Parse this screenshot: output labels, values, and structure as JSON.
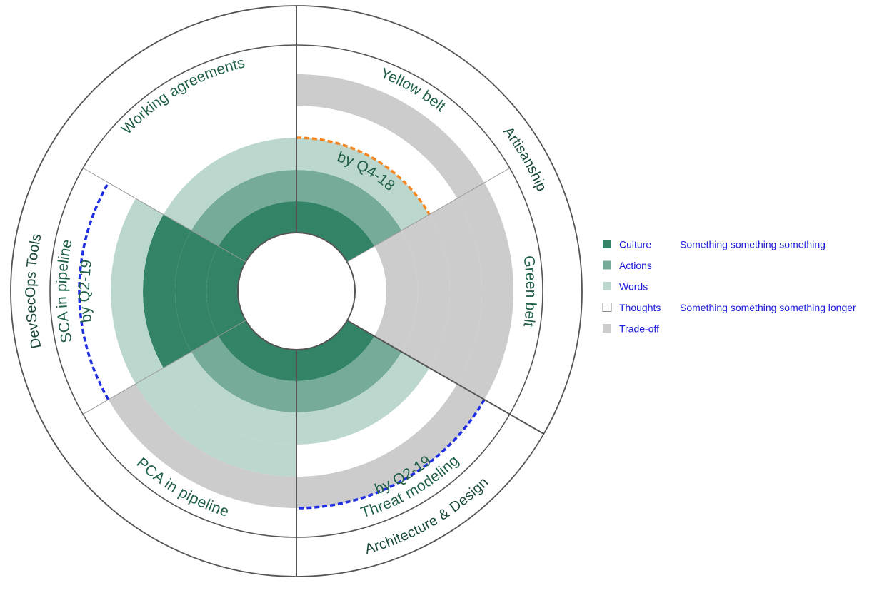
{
  "chart_data": {
    "type": "radial-bar",
    "radial_scale": [
      0,
      4
    ],
    "levels": [
      "Culture",
      "Actions",
      "Words",
      "Thoughts",
      "Trade-off"
    ],
    "legend": [
      {
        "label": "Culture",
        "note": "Something something something",
        "color": "#338466"
      },
      {
        "label": "Actions",
        "note": "",
        "color": "#76ab99"
      },
      {
        "label": "Words",
        "note": "",
        "color": "#bcd7cd"
      },
      {
        "label": "Thoughts",
        "note": "Something something something longer",
        "color": "#ffffff"
      },
      {
        "label": "Trade-off",
        "note": "",
        "color": "#cccccc"
      }
    ],
    "groups": [
      {
        "name": "Artisanship",
        "start_deg": 0,
        "end_deg": 120
      },
      {
        "name": "Architecture & Design",
        "start_deg": 120,
        "end_deg": 180
      },
      {
        "name": "DevSecOps Tools",
        "start_deg": 180,
        "end_deg": 360
      }
    ],
    "categories": [
      {
        "name": "Yellow belt",
        "start_deg": 0,
        "end_deg": 60,
        "rings": [
          "Culture",
          "Actions",
          "Words",
          "Thoughts",
          "Trade-off"
        ],
        "target": {
          "label": "by Q4-18",
          "ring": "Words",
          "color": "#f5861f"
        }
      },
      {
        "name": "Green belt",
        "start_deg": 60,
        "end_deg": 120,
        "rings": [
          "Thoughts",
          "Trade-off",
          "Trade-off",
          "Trade-off",
          "Trade-off"
        ],
        "target": null
      },
      {
        "name": "Threat modeling",
        "start_deg": 120,
        "end_deg": 180,
        "rings": [
          "Culture",
          "Actions",
          "Words",
          "Thoughts",
          "Trade-off"
        ],
        "target": {
          "label": "by Q2-19",
          "ring": "Trade-off",
          "color": "#1f2de3"
        }
      },
      {
        "name": "PCA in pipeline",
        "start_deg": 180,
        "end_deg": 240,
        "rings": [
          "Culture",
          "Actions",
          "Words",
          "Words",
          "Trade-off"
        ],
        "target": null
      },
      {
        "name": "SCA in pipeline",
        "start_deg": 240,
        "end_deg": 300,
        "rings": [
          "Culture",
          "Culture",
          "Culture",
          "Words",
          "Thoughts"
        ],
        "target": {
          "label": "by Q2-19",
          "ring": "Trade-off",
          "color": "#1f2de3"
        }
      },
      {
        "name": "Working agreements",
        "start_deg": 300,
        "end_deg": 360,
        "rings": [
          "Culture",
          "Actions",
          "Words",
          "Thoughts",
          "Thoughts"
        ],
        "target": null
      }
    ]
  }
}
